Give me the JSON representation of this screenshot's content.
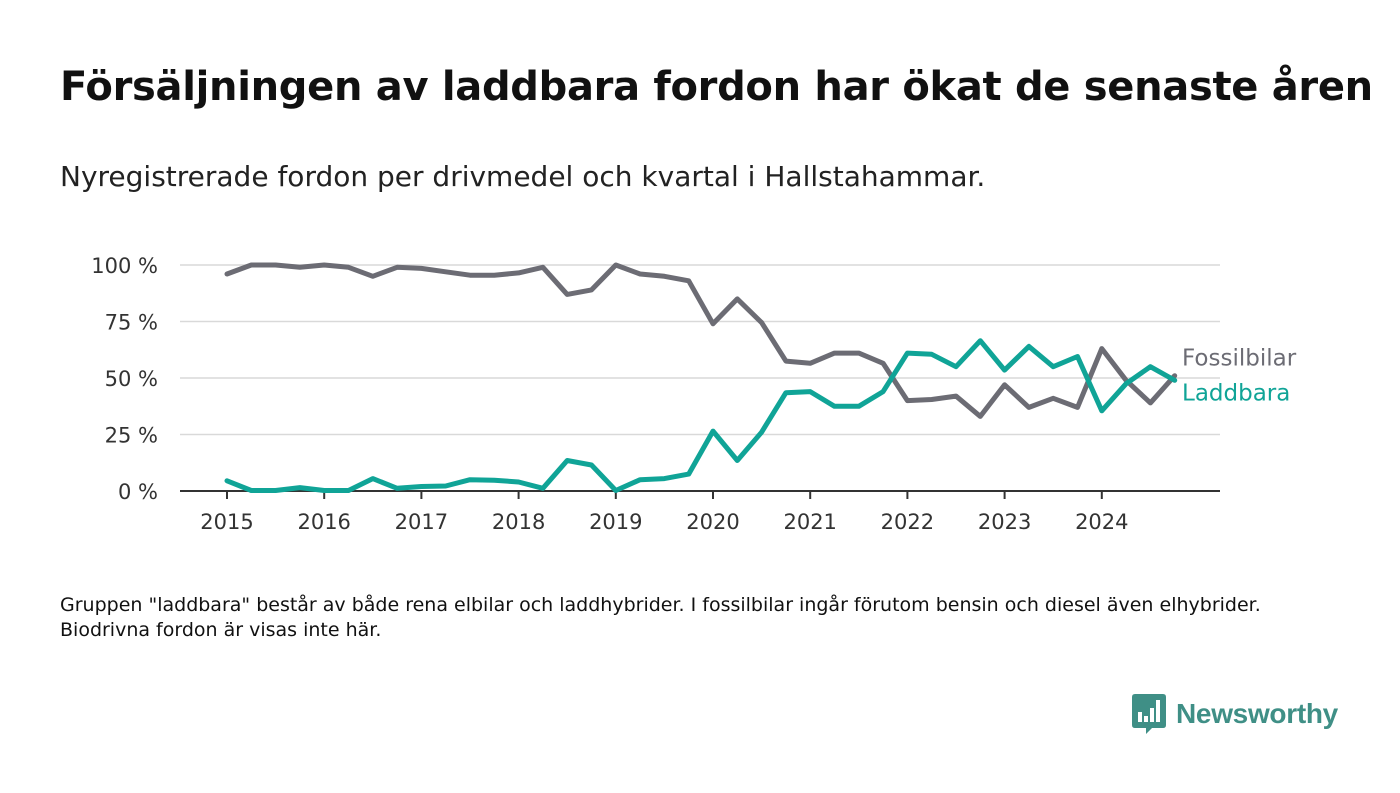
{
  "title": "Försäljningen av laddbara fordon har ökat de senaste åren",
  "subtitle": "Nyregistrerade fordon per drivmedel och kvartal i Hallstahammar.",
  "note": "Gruppen \"laddbara\" består av både rena elbilar och laddhybrider. I fossilbilar ingår förutom bensin och diesel även elhybrider. Biodrivna fordon är visas inte här.",
  "brand": {
    "name": "Newsworthy",
    "color": "#3f8f86",
    "icon": "bar-chart-speech-bubble-icon"
  },
  "colors": {
    "fossil": "#6c6c74",
    "laddbara": "#10a497",
    "grid": "#d9d9d9",
    "axis": "#333333"
  },
  "chart_data": {
    "type": "line",
    "title": "",
    "xlabel": "",
    "ylabel": "",
    "ylim": [
      0,
      100
    ],
    "yticks": [
      0,
      25,
      50,
      75,
      100
    ],
    "ytick_labels": [
      "0 %",
      "25 %",
      "50 %",
      "75 %",
      "100 %"
    ],
    "xtick_labels": [
      "2015",
      "2016",
      "2017",
      "2018",
      "2019",
      "2020",
      "2021",
      "2022",
      "2023",
      "2024"
    ],
    "x": [
      "2015 Q1",
      "2015 Q2",
      "2015 Q3",
      "2015 Q4",
      "2016 Q1",
      "2016 Q2",
      "2016 Q3",
      "2016 Q4",
      "2017 Q1",
      "2017 Q2",
      "2017 Q3",
      "2017 Q4",
      "2018 Q1",
      "2018 Q2",
      "2018 Q3",
      "2018 Q4",
      "2019 Q1",
      "2019 Q2",
      "2019 Q3",
      "2019 Q4",
      "2020 Q1",
      "2020 Q2",
      "2020 Q3",
      "2020 Q4",
      "2021 Q1",
      "2021 Q2",
      "2021 Q3",
      "2021 Q4",
      "2022 Q1",
      "2022 Q2",
      "2022 Q3",
      "2022 Q4",
      "2023 Q1",
      "2023 Q2",
      "2023 Q3",
      "2023 Q4",
      "2024 Q1",
      "2024 Q2",
      "2024 Q3",
      "2024 Q4"
    ],
    "grid": true,
    "legend": "line-end labels",
    "series": [
      {
        "name": "Fossilbilar",
        "color": "#6c6c74",
        "values": [
          96,
          100,
          100,
          99,
          100,
          99,
          95,
          99,
          98.5,
          97,
          95.5,
          95.5,
          96.5,
          99,
          87,
          89,
          100,
          96,
          95,
          93,
          74,
          85,
          74.5,
          57.5,
          56.5,
          61,
          61,
          56.5,
          40,
          40.5,
          42,
          33,
          47,
          37,
          41,
          37,
          63,
          49,
          39,
          51
        ]
      },
      {
        "name": "Laddbara",
        "color": "#10a497",
        "values": [
          4.5,
          0.2,
          0.2,
          1.5,
          0.2,
          0.2,
          5.5,
          1.2,
          2,
          2.2,
          5,
          4.8,
          4,
          1.2,
          13.5,
          11.5,
          0.2,
          5,
          5.5,
          7.5,
          26.5,
          13.5,
          26,
          43.5,
          44,
          37.5,
          37.5,
          44,
          61,
          60.5,
          55,
          66.5,
          53.5,
          64,
          55,
          59.5,
          35.5,
          47.5,
          55,
          49
        ]
      }
    ]
  }
}
